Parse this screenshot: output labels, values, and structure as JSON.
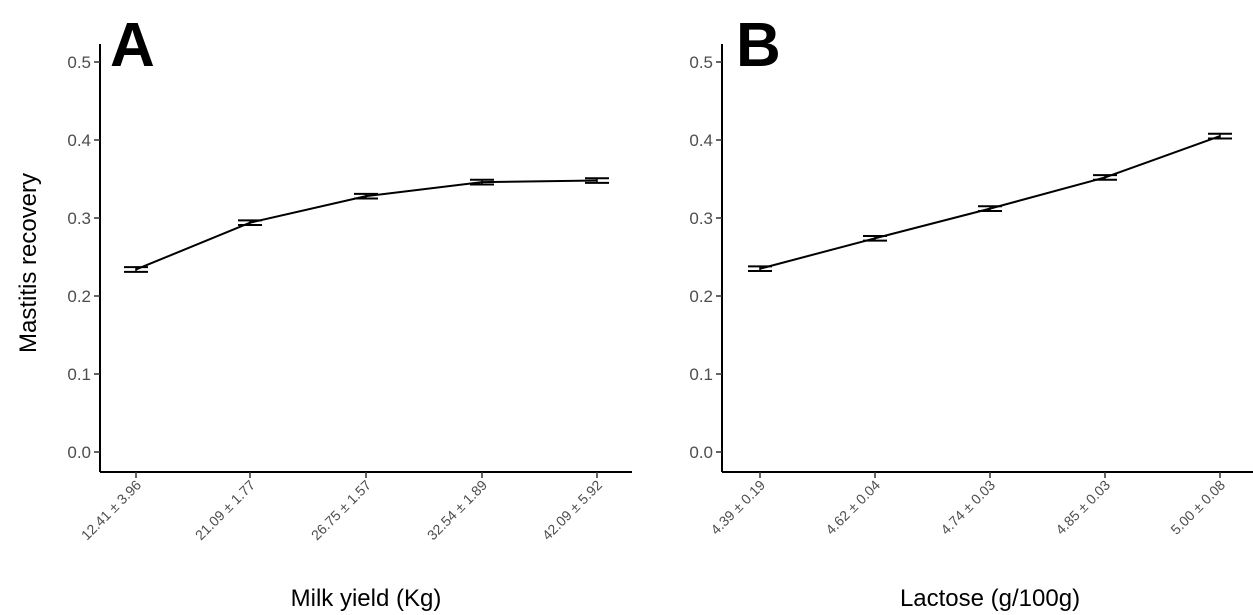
{
  "chart_data": [
    {
      "type": "line",
      "panel_label": "A",
      "title": "",
      "xlabel": "Milk yield (Kg)",
      "ylabel": "Mastitis recovery",
      "categories": [
        "12.41 ± 3.96",
        "21.09 ± 1.77",
        "26.75 ± 1.57",
        "32.54 ± 1.89",
        "42.09 ± 5.92"
      ],
      "values": [
        0.234,
        0.294,
        0.328,
        0.346,
        0.348
      ],
      "errors": [
        0.003,
        0.003,
        0.003,
        0.003,
        0.003
      ],
      "ylim": [
        0.0,
        0.5
      ],
      "yticks": [
        "0.0",
        "0.1",
        "0.2",
        "0.3",
        "0.4",
        "0.5"
      ],
      "grid": false,
      "line_color": "#000000"
    },
    {
      "type": "line",
      "panel_label": "B",
      "title": "",
      "xlabel": "Lactose (g/100g)",
      "ylabel": "",
      "categories": [
        "4.39 ± 0.19",
        "4.62 ± 0.04",
        "4.74 ± 0.03",
        "4.85 ± 0.03",
        "5.00 ± 0.08"
      ],
      "values": [
        0.235,
        0.274,
        0.312,
        0.352,
        0.405
      ],
      "errors": [
        0.003,
        0.003,
        0.003,
        0.003,
        0.003
      ],
      "ylim": [
        0.0,
        0.5
      ],
      "yticks": [
        "0.0",
        "0.1",
        "0.2",
        "0.3",
        "0.4",
        "0.5"
      ],
      "grid": false,
      "line_color": "#000000"
    }
  ]
}
